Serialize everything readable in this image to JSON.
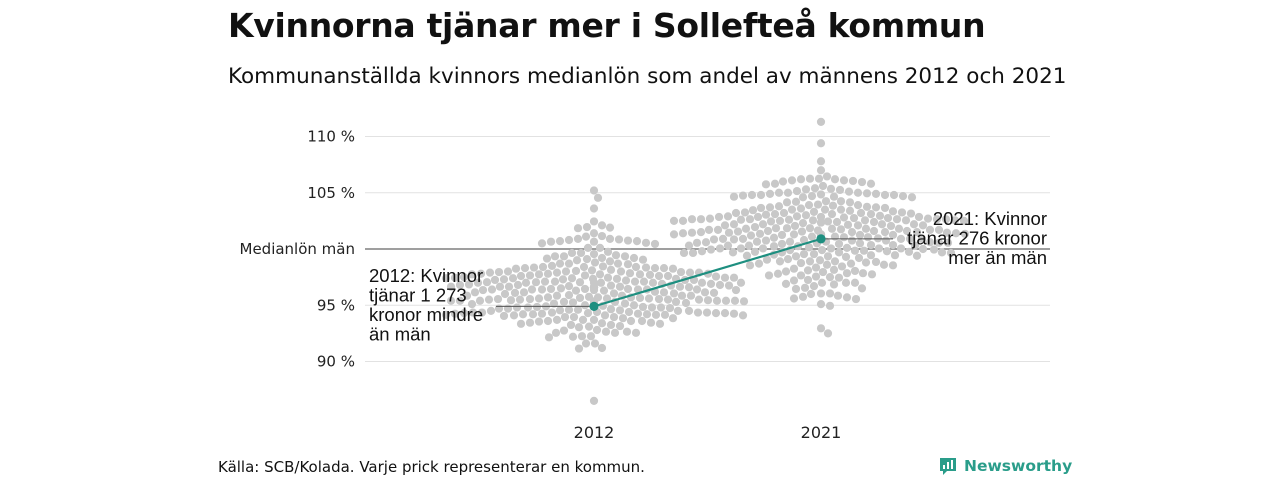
{
  "title": "Kvinnorna tjänar mer i Sollefteå kommun",
  "subtitle": "Kommunanställda kvinnors medianlön som andel av männens 2012 och 2021",
  "source": "Källa: SCB/Kolada. Varje prick representerar en kommun.",
  "brand": "Newsworthy",
  "colors": {
    "highlight": "#1e8f80",
    "dots": "#c8c8c8",
    "grid": "#e2e2e2",
    "reference": "#777777"
  },
  "chart_data": {
    "type": "scatter",
    "title": "Kvinnorna tjänar mer i Sollefteå kommun",
    "categories": [
      "2012",
      "2021"
    ],
    "y_ticks": [
      {
        "value": 110,
        "label": "110 %"
      },
      {
        "value": 105,
        "label": "105 %"
      },
      {
        "value": 100,
        "label": "Medianlön män"
      },
      {
        "value": 95,
        "label": "95 %"
      },
      {
        "value": 90,
        "label": "90 %"
      }
    ],
    "ylim": [
      86,
      112
    ],
    "grid": true,
    "reference_line": {
      "value": 100,
      "label": "Medianlön män"
    },
    "highlight": {
      "series_name": "Sollefteå",
      "values": [
        {
          "x": "2012",
          "y": 94.9
        },
        {
          "x": "2021",
          "y": 100.9
        }
      ]
    },
    "annotations": [
      {
        "x": "2012",
        "lines": [
          "2012: Kvinnor",
          "tjänar 1 273",
          "kronor mindre",
          "än män"
        ]
      },
      {
        "x": "2021",
        "lines": [
          "2021: Kvinnor",
          "tjänar 276 kronor",
          "mer än män"
        ]
      }
    ],
    "distributions": [
      {
        "category": "2012",
        "n": 290,
        "median": 96.3,
        "sd": 2.5,
        "min": 86.5,
        "max": 105.2
      },
      {
        "category": "2021",
        "n": 290,
        "median": 101.7,
        "sd": 2.5,
        "min": 92.5,
        "max": 111.3
      }
    ]
  }
}
